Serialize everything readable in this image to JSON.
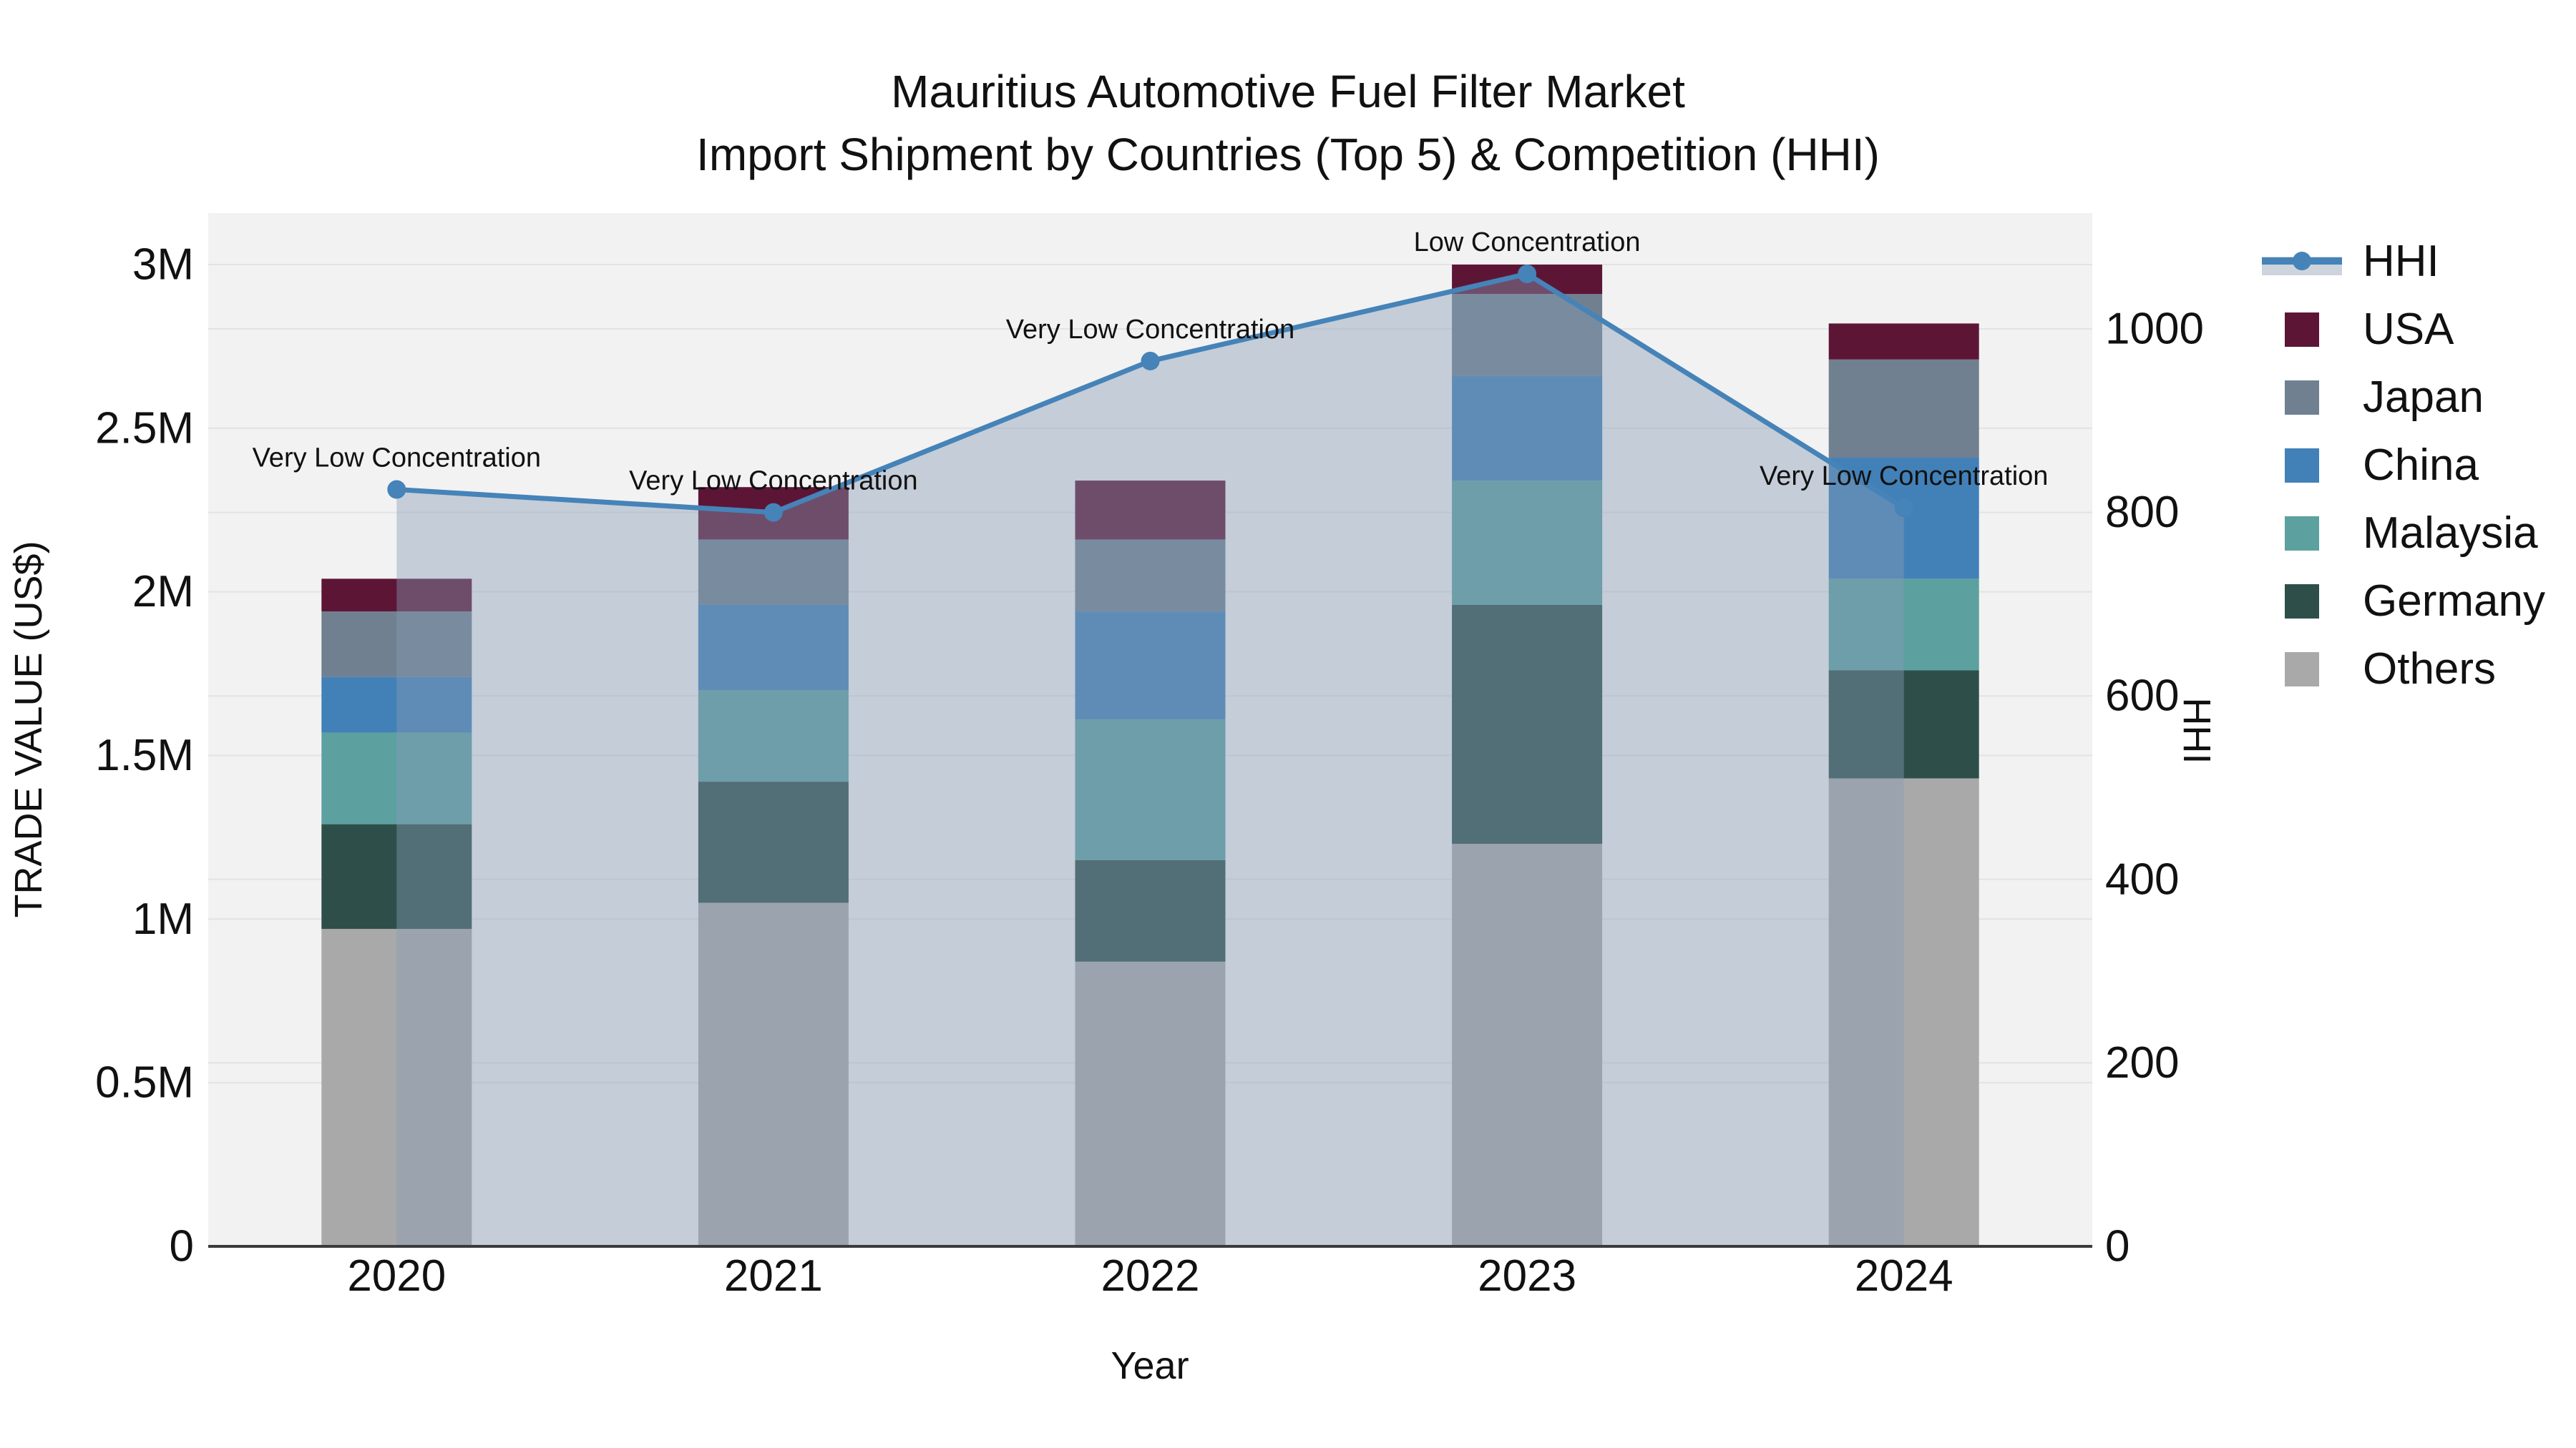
{
  "title": {
    "line1": "Mauritius Automotive Fuel Filter Market",
    "line2": "Import Shipment by Countries (Top 5) & Competition (HHI)"
  },
  "axes": {
    "left": {
      "title": "TRADE VALUE (US$)",
      "tick_labels": [
        "0",
        "0.5M",
        "1M",
        "1.5M",
        "2M",
        "2.5M",
        "3M"
      ],
      "tick_values": [
        0,
        0.5,
        1,
        1.5,
        2,
        2.5,
        3
      ]
    },
    "right": {
      "title": "HHI",
      "tick_labels": [
        "0",
        "200",
        "400",
        "600",
        "800",
        "1000"
      ],
      "tick_values": [
        0,
        200,
        400,
        600,
        800,
        1000
      ]
    },
    "x": {
      "title": "Year"
    }
  },
  "legend": {
    "items": [
      {
        "label": "HHI",
        "type": "line",
        "color": "#4583b8",
        "band": "#ced4dd"
      },
      {
        "label": "USA",
        "type": "square",
        "color": "#5d1536"
      },
      {
        "label": "Japan",
        "type": "square",
        "color": "#708090"
      },
      {
        "label": "China",
        "type": "square",
        "color": "#4281b8"
      },
      {
        "label": "Malaysia",
        "type": "square",
        "color": "#5ca0a0"
      },
      {
        "label": "Germany",
        "type": "square",
        "color": "#2e4f49"
      },
      {
        "label": "Others",
        "type": "square",
        "color": "#a9a9a9"
      }
    ]
  },
  "chart_data": {
    "type": "bar",
    "subtype": "stacked bars (left axis, trade value in millions US$) + HHI line with markers and shaded area (right axis)",
    "categories": [
      "2020",
      "2021",
      "2022",
      "2023",
      "2024"
    ],
    "series": [
      {
        "name": "Others",
        "color": "#a9a9a9",
        "values": [
          0.97,
          1.05,
          0.87,
          1.23,
          1.43
        ]
      },
      {
        "name": "Germany",
        "color": "#2e4f49",
        "values": [
          0.32,
          0.37,
          0.31,
          0.73,
          0.33
        ]
      },
      {
        "name": "Malaysia",
        "color": "#5ca0a0",
        "values": [
          0.28,
          0.28,
          0.43,
          0.38,
          0.28
        ]
      },
      {
        "name": "China",
        "color": "#4281b8",
        "values": [
          0.17,
          0.26,
          0.33,
          0.32,
          0.37
        ]
      },
      {
        "name": "Japan",
        "color": "#708090",
        "values": [
          0.2,
          0.2,
          0.22,
          0.25,
          0.3
        ]
      },
      {
        "name": "USA",
        "color": "#5d1536",
        "values": [
          0.1,
          0.16,
          0.18,
          0.09,
          0.11
        ]
      }
    ],
    "bar_totals_M": [
      2.04,
      2.32,
      2.34,
      3.0,
      2.82
    ],
    "line_series": {
      "name": "HHI",
      "axis": "right",
      "color": "#4583b8",
      "area_fill": "rgba(134,154,182,0.42)",
      "values": [
        825,
        800,
        965,
        1060,
        805
      ]
    },
    "annotations": [
      {
        "category": "2020",
        "text": "Very Low Concentration"
      },
      {
        "category": "2021",
        "text": "Very Low Concentration"
      },
      {
        "category": "2022",
        "text": "Very Low Concentration"
      },
      {
        "category": "2023",
        "text": "Low Concentration"
      },
      {
        "category": "2024",
        "text": "Very Low Concentration"
      }
    ],
    "xlabel": "Year",
    "ylabel_left": "TRADE VALUE (US$)",
    "ylabel_right": "HHI",
    "ylim_left_M": [
      0,
      3.16
    ],
    "ylim_right": [
      0,
      1125
    ],
    "grid": true,
    "plot_bg": "#f2f2f2",
    "grid_color": "#e3e3e3",
    "axis_line_color": "#3b3b3b",
    "legend_position": "right"
  }
}
